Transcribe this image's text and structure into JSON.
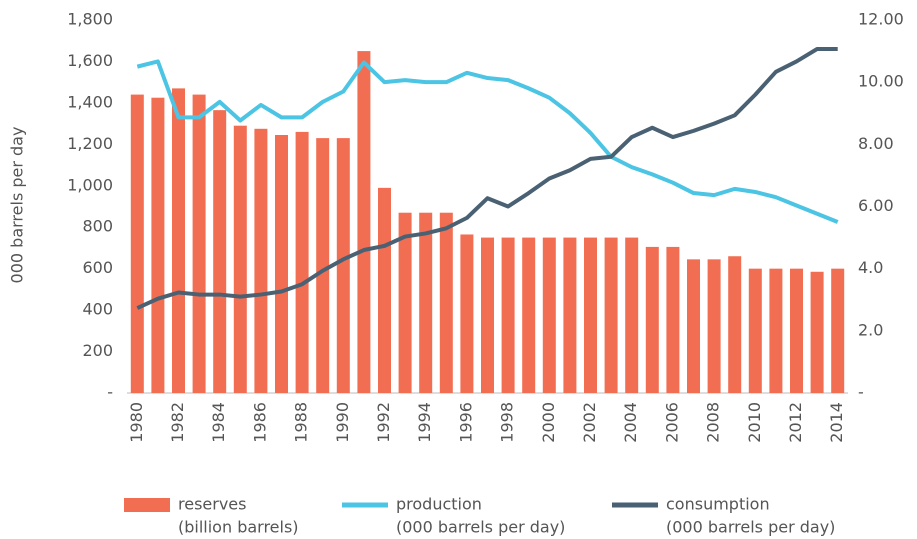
{
  "chart_data": {
    "type": "bar-line",
    "ylabel": "000 barrels per day",
    "categories": [
      "1980",
      null,
      "1982",
      null,
      "1984",
      null,
      "1986",
      null,
      "1988",
      null,
      "1990",
      null,
      "1992",
      null,
      "1994",
      null,
      "1996",
      null,
      "1998",
      null,
      "2000",
      null,
      "2002",
      null,
      "2004",
      null,
      "2006",
      null,
      "2008",
      null,
      "2010",
      null,
      "2012",
      null,
      "2014"
    ],
    "ylim": [
      0,
      1800
    ],
    "yticks": [
      {
        "value": 0,
        "label": "-"
      },
      200,
      400,
      600,
      800,
      {
        "value": 1000,
        "label": "1,000"
      },
      {
        "value": 1200,
        "label": "1,200"
      },
      {
        "value": 1400,
        "label": "1,400"
      },
      {
        "value": 1600,
        "label": "1,600"
      },
      {
        "value": 1800,
        "label": "1,800"
      }
    ],
    "y2lim": [
      0,
      12
    ],
    "y2ticks": [
      {
        "value": 0,
        "label": "-"
      },
      {
        "value": 2,
        "label": "2.0"
      },
      {
        "value": 4,
        "label": "4.0"
      },
      {
        "value": 6,
        "label": "6.00"
      },
      {
        "value": 8,
        "label": "8.00"
      },
      {
        "value": 10,
        "label": "10.00"
      },
      {
        "value": 12,
        "label": "12.00"
      }
    ],
    "grid": false,
    "series": [
      {
        "name": "reserves",
        "unit": "(billion barrels)",
        "type": "bar",
        "axis": "y2",
        "color": "#f26e52",
        "values": [
          9.6,
          9.5,
          9.8,
          9.6,
          9.1,
          8.6,
          8.5,
          8.3,
          8.4,
          8.2,
          8.2,
          11.0,
          6.6,
          5.8,
          5.8,
          5.8,
          5.1,
          5.0,
          5.0,
          5.0,
          5.0,
          5.0,
          5.0,
          5.0,
          5.0,
          4.7,
          4.7,
          4.3,
          4.3,
          4.4,
          4.0,
          4.0,
          4.0,
          3.9,
          4.0
        ]
      },
      {
        "name": "production",
        "unit": "(000 barrels per day)",
        "type": "line",
        "color": "#4cc4e4",
        "values": [
          1575,
          1600,
          1330,
          1330,
          1405,
          1315,
          1390,
          1330,
          1330,
          1405,
          1455,
          1595,
          1500,
          1510,
          1500,
          1500,
          1545,
          1520,
          1510,
          1470,
          1425,
          1350,
          1255,
          1140,
          1090,
          1055,
          1015,
          965,
          955,
          985,
          970,
          945,
          905,
          865,
          825
        ]
      },
      {
        "name": "consumption",
        "unit": "(000 barrels per day)",
        "type": "line",
        "color": "#4a6173",
        "values": [
          410,
          455,
          485,
          475,
          475,
          465,
          475,
          490,
          525,
          590,
          645,
          690,
          710,
          755,
          770,
          795,
          845,
          940,
          900,
          965,
          1035,
          1075,
          1130,
          1140,
          1235,
          1280,
          1235,
          1265,
          1300,
          1340,
          1440,
          1550,
          1600,
          1660,
          1660
        ]
      }
    ]
  }
}
